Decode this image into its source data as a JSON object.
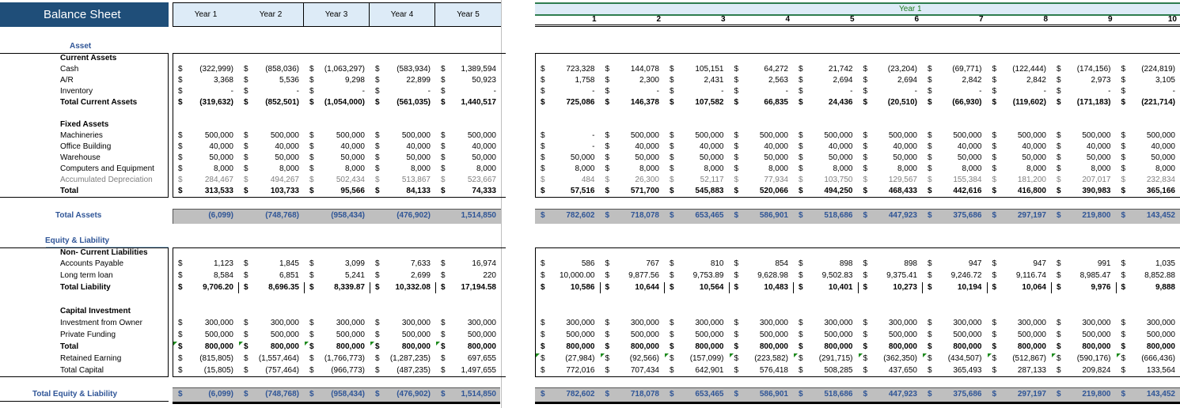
{
  "title": "Balance Sheet",
  "left_headers": [
    "Year 1",
    "Year 2",
    "Year 3",
    "Year 4",
    "Year 5"
  ],
  "right_header": {
    "year": "Year 1",
    "months": [
      "1",
      "2",
      "3",
      "4",
      "5",
      "6",
      "7",
      "8",
      "9",
      "10"
    ]
  },
  "currency": "$",
  "colors": {
    "title_bg": "#1F4E79",
    "header_bg": "#DDEBF7",
    "band_bg": "#BFBFBF",
    "accent_blue": "#2F5597",
    "selection_green": "#2E7D4F"
  },
  "rows": [
    {
      "label": "Asset",
      "style": "section-blue"
    },
    {
      "label": "Current Assets",
      "style": "bold"
    },
    {
      "label": "Cash",
      "left": [
        "(322,999)",
        "(858,036)",
        "(1,063,297)",
        "(583,934)",
        "1,389,594"
      ],
      "right": [
        "723,328",
        "144,078",
        "105,151",
        "64,272",
        "21,742",
        "(23,204)",
        "(69,771)",
        "(122,444)",
        "(174,156)",
        "(224,819)"
      ]
    },
    {
      "label": "A/R",
      "left": [
        "3,368",
        "5,536",
        "9,298",
        "22,899",
        "50,923"
      ],
      "right": [
        "1,758",
        "2,300",
        "2,431",
        "2,563",
        "2,694",
        "2,694",
        "2,842",
        "2,842",
        "2,973",
        "3,105"
      ]
    },
    {
      "label": "Inventory",
      "left": [
        "-",
        "-",
        "-",
        "-",
        "-"
      ],
      "right": [
        "-",
        "-",
        "-",
        "-",
        "-",
        "-",
        "-",
        "-",
        "-",
        "-"
      ]
    },
    {
      "label": "Total Current Assets",
      "style": "bold",
      "left": [
        "(319,632)",
        "(852,501)",
        "(1,054,000)",
        "(561,035)",
        "1,440,517"
      ],
      "right": [
        "725,086",
        "146,378",
        "107,582",
        "66,835",
        "24,436",
        "(20,510)",
        "(66,930)",
        "(119,602)",
        "(171,183)",
        "(221,714)"
      ]
    },
    {
      "label": "Fixed Assets",
      "style": "bold"
    },
    {
      "label": "Machineries",
      "left": [
        "500,000",
        "500,000",
        "500,000",
        "500,000",
        "500,000"
      ],
      "right": [
        "-",
        "500,000",
        "500,000",
        "500,000",
        "500,000",
        "500,000",
        "500,000",
        "500,000",
        "500,000",
        "500,000"
      ]
    },
    {
      "label": "Office Building",
      "left": [
        "40,000",
        "40,000",
        "40,000",
        "40,000",
        "40,000"
      ],
      "right": [
        "-",
        "40,000",
        "40,000",
        "40,000",
        "40,000",
        "40,000",
        "40,000",
        "40,000",
        "40,000",
        "40,000"
      ]
    },
    {
      "label": "Warehouse",
      "left": [
        "50,000",
        "50,000",
        "50,000",
        "50,000",
        "50,000"
      ],
      "right": [
        "50,000",
        "50,000",
        "50,000",
        "50,000",
        "50,000",
        "50,000",
        "50,000",
        "50,000",
        "50,000",
        "50,000"
      ]
    },
    {
      "label": "Computers and Equipment",
      "left": [
        "8,000",
        "8,000",
        "8,000",
        "8,000",
        "8,000"
      ],
      "right": [
        "8,000",
        "8,000",
        "8,000",
        "8,000",
        "8,000",
        "8,000",
        "8,000",
        "8,000",
        "8,000",
        "8,000"
      ]
    },
    {
      "label": "Accumulated Depreciation",
      "style": "grey",
      "left": [
        "284,467",
        "494,267",
        "502,434",
        "513,867",
        "523,667"
      ],
      "right": [
        "484",
        "26,300",
        "52,117",
        "77,934",
        "103,750",
        "129,567",
        "155,384",
        "181,200",
        "207,017",
        "232,834"
      ]
    },
    {
      "label": "Total",
      "style": "bold",
      "left": [
        "313,533",
        "103,733",
        "95,566",
        "84,133",
        "74,333"
      ],
      "right": [
        "57,516",
        "571,700",
        "545,883",
        "520,066",
        "494,250",
        "468,433",
        "442,616",
        "416,800",
        "390,983",
        "365,166"
      ]
    },
    {
      "label": "Total Assets",
      "style": "total-band",
      "left_no_currency": true,
      "left": [
        "(6,099)",
        "(748,768)",
        "(958,434)",
        "(476,902)",
        "1,514,850"
      ],
      "right": [
        "782,602",
        "718,078",
        "653,465",
        "586,901",
        "518,686",
        "447,923",
        "375,686",
        "297,197",
        "219,800",
        "143,452"
      ]
    },
    {
      "label": "Equity & Liability",
      "style": "section-blue"
    },
    {
      "label": "Non- Current Liabilities",
      "style": "bold"
    },
    {
      "label": " Accounts Payable",
      "left": [
        "1,123",
        "1,845",
        "3,099",
        "7,633",
        "16,974"
      ],
      "right": [
        "586",
        "767",
        "810",
        "854",
        "898",
        "898",
        "947",
        "947",
        "991",
        "1,035"
      ]
    },
    {
      "label": "Long term loan",
      "left": [
        "8,584",
        "6,851",
        "5,241",
        "2,699",
        "220"
      ],
      "right": [
        "10,000.00",
        "9,877.56",
        "9,753.89",
        "9,628.98",
        "9,502.83",
        "9,375.41",
        "9,246.72",
        "9,116.74",
        "8,985.47",
        "8,852.88"
      ]
    },
    {
      "label": "Total Liability",
      "style": "bold",
      "sep": true,
      "left": [
        "9,706.20",
        "8,696.35",
        "8,339.87",
        "10,332.08",
        "17,194.58"
      ],
      "right": [
        "10,586",
        "10,644",
        "10,564",
        "10,483",
        "10,401",
        "10,273",
        "10,194",
        "10,064",
        "9,976",
        "9,888"
      ]
    },
    {
      "label": "Capital Investment",
      "style": "bold"
    },
    {
      "label": "Investment from Owner",
      "left": [
        "300,000",
        "300,000",
        "300,000",
        "300,000",
        "300,000"
      ],
      "right": [
        "300,000",
        "300,000",
        "300,000",
        "300,000",
        "300,000",
        "300,000",
        "300,000",
        "300,000",
        "300,000",
        "300,000"
      ]
    },
    {
      "label": "Private Funding",
      "left": [
        "500,000",
        "500,000",
        "500,000",
        "500,000",
        "500,000"
      ],
      "right": [
        "500,000",
        "500,000",
        "500,000",
        "500,000",
        "500,000",
        "500,000",
        "500,000",
        "500,000",
        "500,000",
        "500,000"
      ]
    },
    {
      "label": "Total",
      "style": "bold",
      "left_flag": true,
      "left": [
        "800,000",
        "800,000",
        "800,000",
        "800,000",
        "800,000"
      ],
      "right": [
        "800,000",
        "800,000",
        "800,000",
        "800,000",
        "800,000",
        "800,000",
        "800,000",
        "800,000",
        "800,000",
        "800,000"
      ]
    },
    {
      "label": "Retained Earning",
      "right_flag": true,
      "left": [
        "(815,805)",
        "(1,557,464)",
        "(1,766,773)",
        "(1,287,235)",
        "697,655"
      ],
      "right": [
        "(27,984)",
        "(92,566)",
        "(157,099)",
        "(223,582)",
        "(291,715)",
        "(362,350)",
        "(434,507)",
        "(512,867)",
        "(590,176)",
        "(666,436)"
      ]
    },
    {
      "label": "Total Capital",
      "left": [
        "(15,805)",
        "(757,464)",
        "(966,773)",
        "(487,235)",
        "1,497,655"
      ],
      "right": [
        "772,016",
        "707,434",
        "642,901",
        "576,418",
        "508,285",
        "437,650",
        "365,493",
        "287,133",
        "209,824",
        "133,564"
      ]
    },
    {
      "label": "Total Equity & Liability",
      "style": "total-band",
      "left": [
        "(6,099)",
        "(748,768)",
        "(958,434)",
        "(476,902)",
        "1,514,850"
      ],
      "right": [
        "782,602",
        "718,078",
        "653,465",
        "586,901",
        "518,686",
        "447,923",
        "375,686",
        "297,197",
        "219,800",
        "143,452"
      ]
    }
  ]
}
